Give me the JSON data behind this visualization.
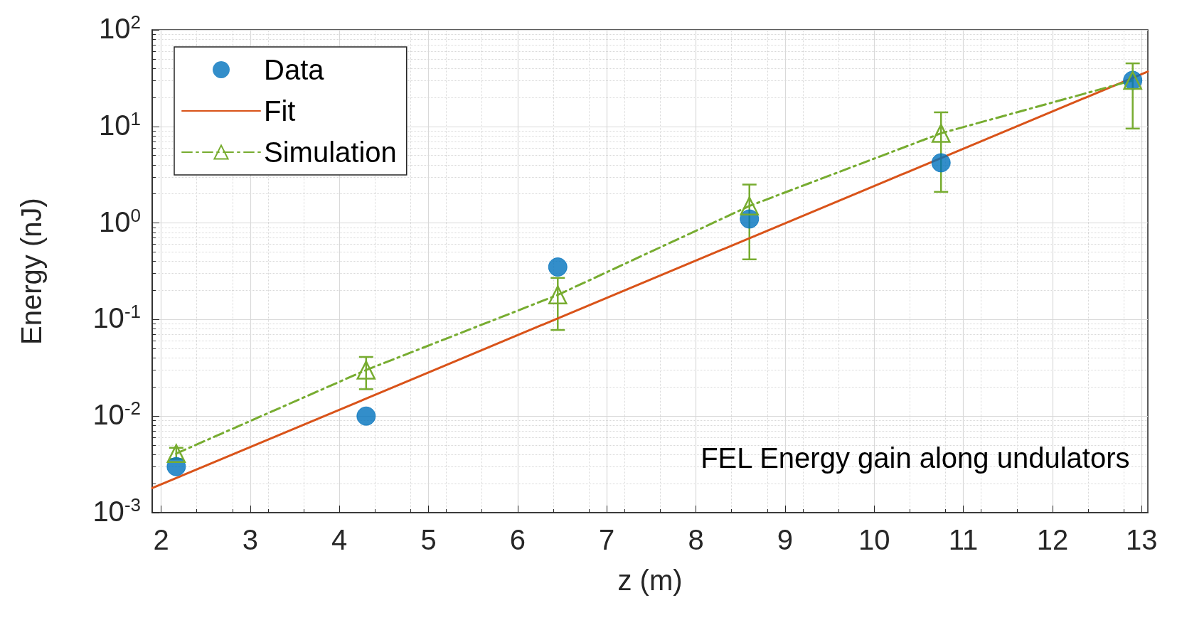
{
  "chart_data": {
    "type": "scatter",
    "xlabel": "z (m)",
    "ylabel": "Energy (nJ)",
    "log": "y",
    "grid": true,
    "legend": "top left",
    "xlim": [
      1.9,
      13.07
    ],
    "xticks": [
      2,
      3,
      4,
      5,
      6,
      7,
      8,
      9,
      10,
      11,
      12,
      13
    ],
    "ylim": [
      0.001,
      100
    ],
    "yticks": [
      {
        "value": 0.001,
        "label": "10$^{-3}$"
      },
      {
        "value": 0.01,
        "label": "10$^{-2}$"
      },
      {
        "value": 0.1,
        "label": "10$^{-1}$"
      },
      {
        "value": 1,
        "label": "10$^{0}$"
      },
      {
        "value": 10,
        "label": "10$^{1}$"
      },
      {
        "value": 100,
        "label": "10$^{2}$"
      }
    ],
    "annotations": [
      "FEL Energy gain along undulators"
    ],
    "series": [
      {
        "name": "Data",
        "marker": "circle",
        "color": "#0072bd",
        "x": [
          2.17,
          4.3,
          6.45,
          8.6,
          10.75,
          12.9
        ],
        "values": [
          0.003,
          0.01,
          0.35,
          1.1,
          4.2,
          30
        ]
      },
      {
        "name": "Fit",
        "type": "line",
        "marker": "none",
        "line_style": "solid",
        "color": "#d95319",
        "x": [
          1.9,
          13.07
        ],
        "values": [
          0.0018,
          37
        ]
      },
      {
        "name": "Simulation",
        "type": "line",
        "marker": "triangle",
        "line_style": "dashed",
        "color": "#77ac30",
        "x": [
          2.17,
          4.3,
          6.45,
          8.6,
          10.75,
          12.9
        ],
        "values": [
          0.0041,
          0.03,
          0.18,
          1.5,
          8.5,
          30
        ],
        "errors": [
          [
            0.0036,
            0.0047
          ],
          [
            0.019,
            0.041
          ],
          [
            0.078,
            0.27
          ],
          [
            0.42,
            2.5
          ],
          [
            2.1,
            14
          ],
          [
            9.5,
            45
          ]
        ]
      }
    ]
  }
}
